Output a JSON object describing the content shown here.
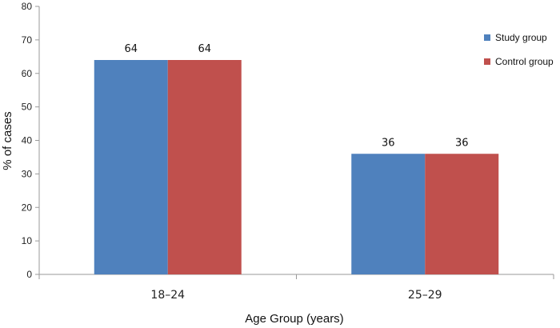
{
  "chart_data": {
    "type": "bar",
    "categories": [
      "18–24",
      "25–29"
    ],
    "series": [
      {
        "name": "Study group",
        "values": [
          64,
          36
        ],
        "color": "#4F81BD"
      },
      {
        "name": "Control group",
        "values": [
          64,
          36
        ],
        "color": "#C0504D"
      }
    ],
    "xlabel": "Age Group (years)",
    "ylabel": "% of cases",
    "ylim": [
      0,
      80
    ],
    "yticks": [
      0,
      10,
      20,
      30,
      40,
      50,
      60,
      70,
      80
    ],
    "grid": false,
    "legend_position": "top-right",
    "data_labels": true
  }
}
